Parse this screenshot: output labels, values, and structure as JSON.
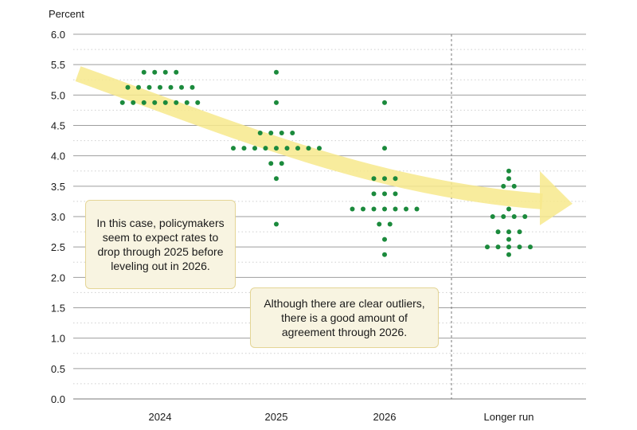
{
  "chart_data": {
    "type": "scatter",
    "ylabel": "Percent",
    "ylim": [
      0,
      6
    ],
    "y_ticks": [
      "0.0",
      "0.5",
      "1.0",
      "1.5",
      "2.0",
      "2.5",
      "3.0",
      "3.5",
      "4.0",
      "4.5",
      "5.0",
      "5.5",
      "6.0"
    ],
    "categories": [
      "2024",
      "2025",
      "2026",
      "Longer run"
    ],
    "grid": true,
    "colors": {
      "dot": "#1b8a3c",
      "arrow": "#f7e98c",
      "grid": "#9e9e9e",
      "divider": "#777777"
    },
    "trend_arrow": {
      "from": {
        "category": "2024",
        "y": 5.35
      },
      "to": {
        "category": "Longer run",
        "y": 3.25
      }
    },
    "series": [
      {
        "category": "2024",
        "dots": [
          {
            "y": 5.375,
            "count": 4
          },
          {
            "y": 5.125,
            "count": 7
          },
          {
            "y": 4.875,
            "count": 8
          }
        ]
      },
      {
        "category": "2025",
        "dots": [
          {
            "y": 5.375,
            "count": 1
          },
          {
            "y": 4.875,
            "count": 1
          },
          {
            "y": 4.375,
            "count": 4
          },
          {
            "y": 4.125,
            "count": 9
          },
          {
            "y": 3.875,
            "count": 2
          },
          {
            "y": 3.625,
            "count": 1
          },
          {
            "y": 2.875,
            "count": 1
          }
        ]
      },
      {
        "category": "2026",
        "dots": [
          {
            "y": 4.875,
            "count": 1
          },
          {
            "y": 4.125,
            "count": 1
          },
          {
            "y": 3.625,
            "count": 3
          },
          {
            "y": 3.375,
            "count": 3
          },
          {
            "y": 3.125,
            "count": 7
          },
          {
            "y": 2.875,
            "count": 2
          },
          {
            "y": 2.625,
            "count": 1
          },
          {
            "y": 2.375,
            "count": 1
          }
        ]
      },
      {
        "category": "Longer run",
        "dots": [
          {
            "y": 3.75,
            "count": 1
          },
          {
            "y": 3.625,
            "count": 1
          },
          {
            "y": 3.5,
            "count": 2
          },
          {
            "y": 3.125,
            "count": 1
          },
          {
            "y": 3.0,
            "count": 4
          },
          {
            "y": 2.75,
            "count": 3
          },
          {
            "y": 2.625,
            "count": 1
          },
          {
            "y": 2.5,
            "count": 5
          },
          {
            "y": 2.375,
            "count": 1
          }
        ]
      }
    ]
  },
  "annotations": {
    "callout_1": "In this case, policymakers seem to expect rates to drop through 2025 before leveling out in 2026.",
    "callout_2": "Although there are clear outliers, there is a good amount of agreement through 2026."
  }
}
